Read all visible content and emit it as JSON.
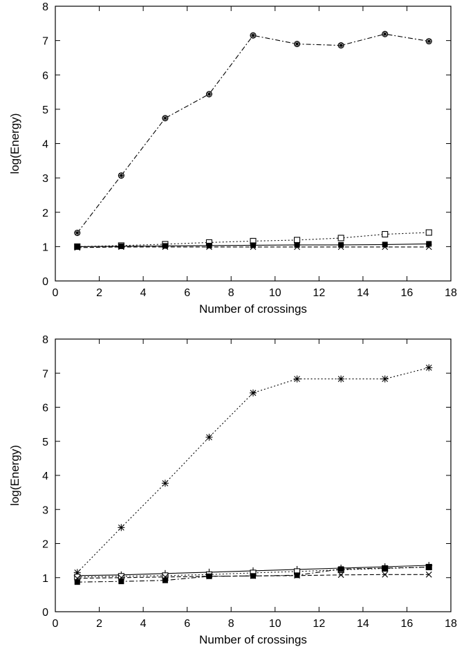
{
  "chart_data": [
    {
      "type": "line",
      "title": "",
      "xlabel": "Number of crossings",
      "ylabel": "log(Energy)",
      "xlim": [
        0,
        18
      ],
      "ylim": [
        0,
        8
      ],
      "xticks": [
        "0",
        "2",
        "4",
        "6",
        "8",
        "10",
        "12",
        "14",
        "16",
        "18"
      ],
      "yticks": [
        "0",
        "1",
        "2",
        "3",
        "4",
        "5",
        "6",
        "7",
        "8"
      ],
      "grid": false,
      "legend": "none",
      "x": [
        1,
        3,
        5,
        7,
        9,
        11,
        13,
        15,
        17
      ],
      "series": [
        {
          "values": [
            1.4,
            3.07,
            4.74,
            5.44,
            7.15,
            6.9,
            6.86,
            7.19,
            6.98
          ],
          "marker": "circle-star",
          "dash": "dash-dot"
        },
        {
          "values": [
            1.0,
            1.03,
            1.07,
            1.12,
            1.16,
            1.19,
            1.25,
            1.36,
            1.41
          ],
          "marker": "square-open",
          "dash": "dotted"
        },
        {
          "values": [
            1.0,
            1.01,
            1.02,
            1.03,
            1.04,
            1.05,
            1.05,
            1.06,
            1.08
          ],
          "marker": "square-filled",
          "dash": "solid"
        },
        {
          "values": [
            0.97,
            0.99,
            0.99,
            0.99,
            0.99,
            0.99,
            0.99,
            0.99,
            0.99
          ],
          "marker": "cross",
          "dash": "dashed"
        }
      ]
    },
    {
      "type": "line",
      "title": "",
      "xlabel": "Number of crossings",
      "ylabel": "log(Energy)",
      "xlim": [
        0,
        18
      ],
      "ylim": [
        0,
        8
      ],
      "xticks": [
        "0",
        "2",
        "4",
        "6",
        "8",
        "10",
        "12",
        "14",
        "16",
        "18"
      ],
      "yticks": [
        "0",
        "1",
        "2",
        "3",
        "4",
        "5",
        "6",
        "7",
        "8"
      ],
      "grid": false,
      "legend": "none",
      "x": [
        1,
        3,
        5,
        7,
        9,
        11,
        13,
        15,
        17
      ],
      "series": [
        {
          "values": [
            1.15,
            2.47,
            3.77,
            5.12,
            6.42,
            6.83,
            6.83,
            6.83,
            7.16
          ],
          "marker": "star",
          "dash": "dotted"
        },
        {
          "values": [
            1.06,
            1.08,
            1.12,
            1.16,
            1.2,
            1.24,
            1.28,
            1.32,
            1.36
          ],
          "marker": "plus",
          "dash": "solid"
        },
        {
          "values": [
            1.02,
            1.04,
            1.06,
            1.09,
            1.14,
            1.18,
            1.23,
            1.27,
            1.31
          ],
          "marker": "square-open",
          "dash": "dotted"
        },
        {
          "values": [
            0.87,
            0.89,
            0.92,
            1.04,
            1.05,
            1.07,
            1.25,
            1.28,
            1.31
          ],
          "marker": "square-filled",
          "dash": "dash-dot"
        },
        {
          "values": [
            0.98,
            1.0,
            1.02,
            1.04,
            1.05,
            1.06,
            1.08,
            1.09,
            1.09
          ],
          "marker": "cross",
          "dash": "dashed"
        }
      ]
    }
  ]
}
